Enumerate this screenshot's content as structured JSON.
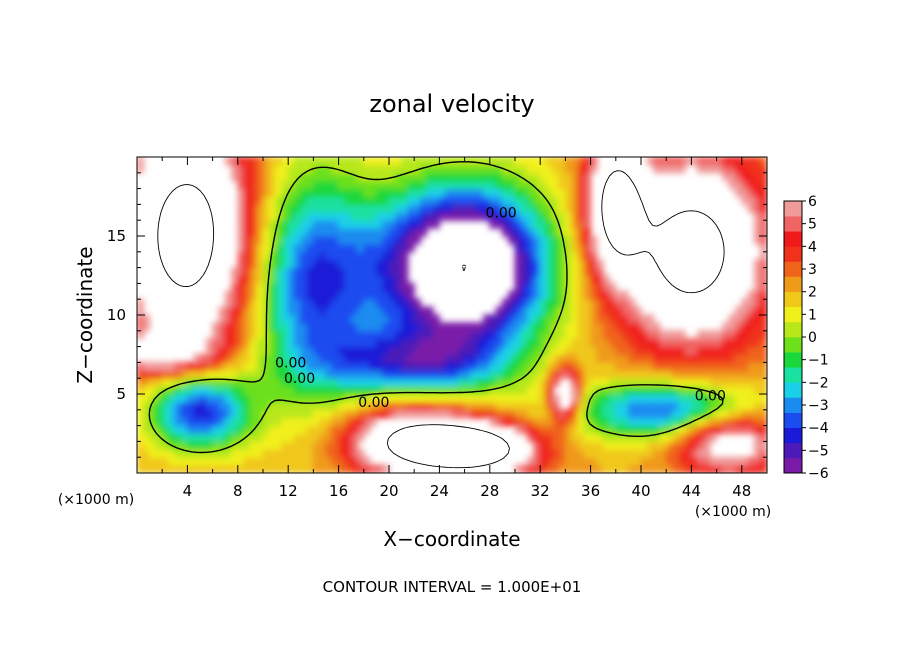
{
  "chart_data": {
    "type": "heatmap",
    "title": "zonal velocity",
    "xlabel": "X−coordinate",
    "ylabel": "Z−coordinate",
    "x_unit_left": "(×1000 m)",
    "x_unit_right": "(×1000 m)",
    "footer": "CONTOUR INTERVAL = 1.000E+01",
    "xlim": [
      0,
      50
    ],
    "ylim": [
      0,
      20
    ],
    "x_ticks": [
      "4",
      "8",
      "12",
      "16",
      "20",
      "24",
      "28",
      "32",
      "36",
      "40",
      "44",
      "48"
    ],
    "x_tick_values": [
      4,
      8,
      12,
      16,
      20,
      24,
      28,
      32,
      36,
      40,
      44,
      48
    ],
    "y_ticks": [
      "5",
      "10",
      "15"
    ],
    "y_tick_values": [
      5,
      10,
      15
    ],
    "colorbar": {
      "range": [
        -6,
        6
      ],
      "labels": [
        "6",
        "5",
        "4",
        "3",
        "2",
        "1",
        "0",
        "−1",
        "−2",
        "−3",
        "−4",
        "−5",
        "−6"
      ],
      "label_values": [
        6,
        5,
        4,
        3,
        2,
        1,
        0,
        -1,
        -2,
        -3,
        -4,
        -5,
        -6
      ],
      "colors": [
        "#7a1aa8",
        "#4c1ab8",
        "#1a1ad8",
        "#1a4cf0",
        "#1a8cf0",
        "#1ad0e8",
        "#1ae0a0",
        "#1ad83a",
        "#6ce01a",
        "#b8e81a",
        "#f0f01a",
        "#f0c81a",
        "#f09a1a",
        "#f0641a",
        "#f0321a",
        "#f01a1a",
        "#f06464",
        "#f09a9a"
      ]
    },
    "contour_labels": [
      {
        "text": "0.00",
        "x": 28.9,
        "z": 16.5
      },
      {
        "text": "0.00",
        "x": 18.8,
        "z": 4.5
      },
      {
        "text": "0.00",
        "x": 45.5,
        "z": 4.9
      },
      {
        "text": "0.00",
        "x": 12.2,
        "z": 7.0
      },
      {
        "text": "0.00",
        "x": 12.9,
        "z": 6.0
      }
    ]
  }
}
